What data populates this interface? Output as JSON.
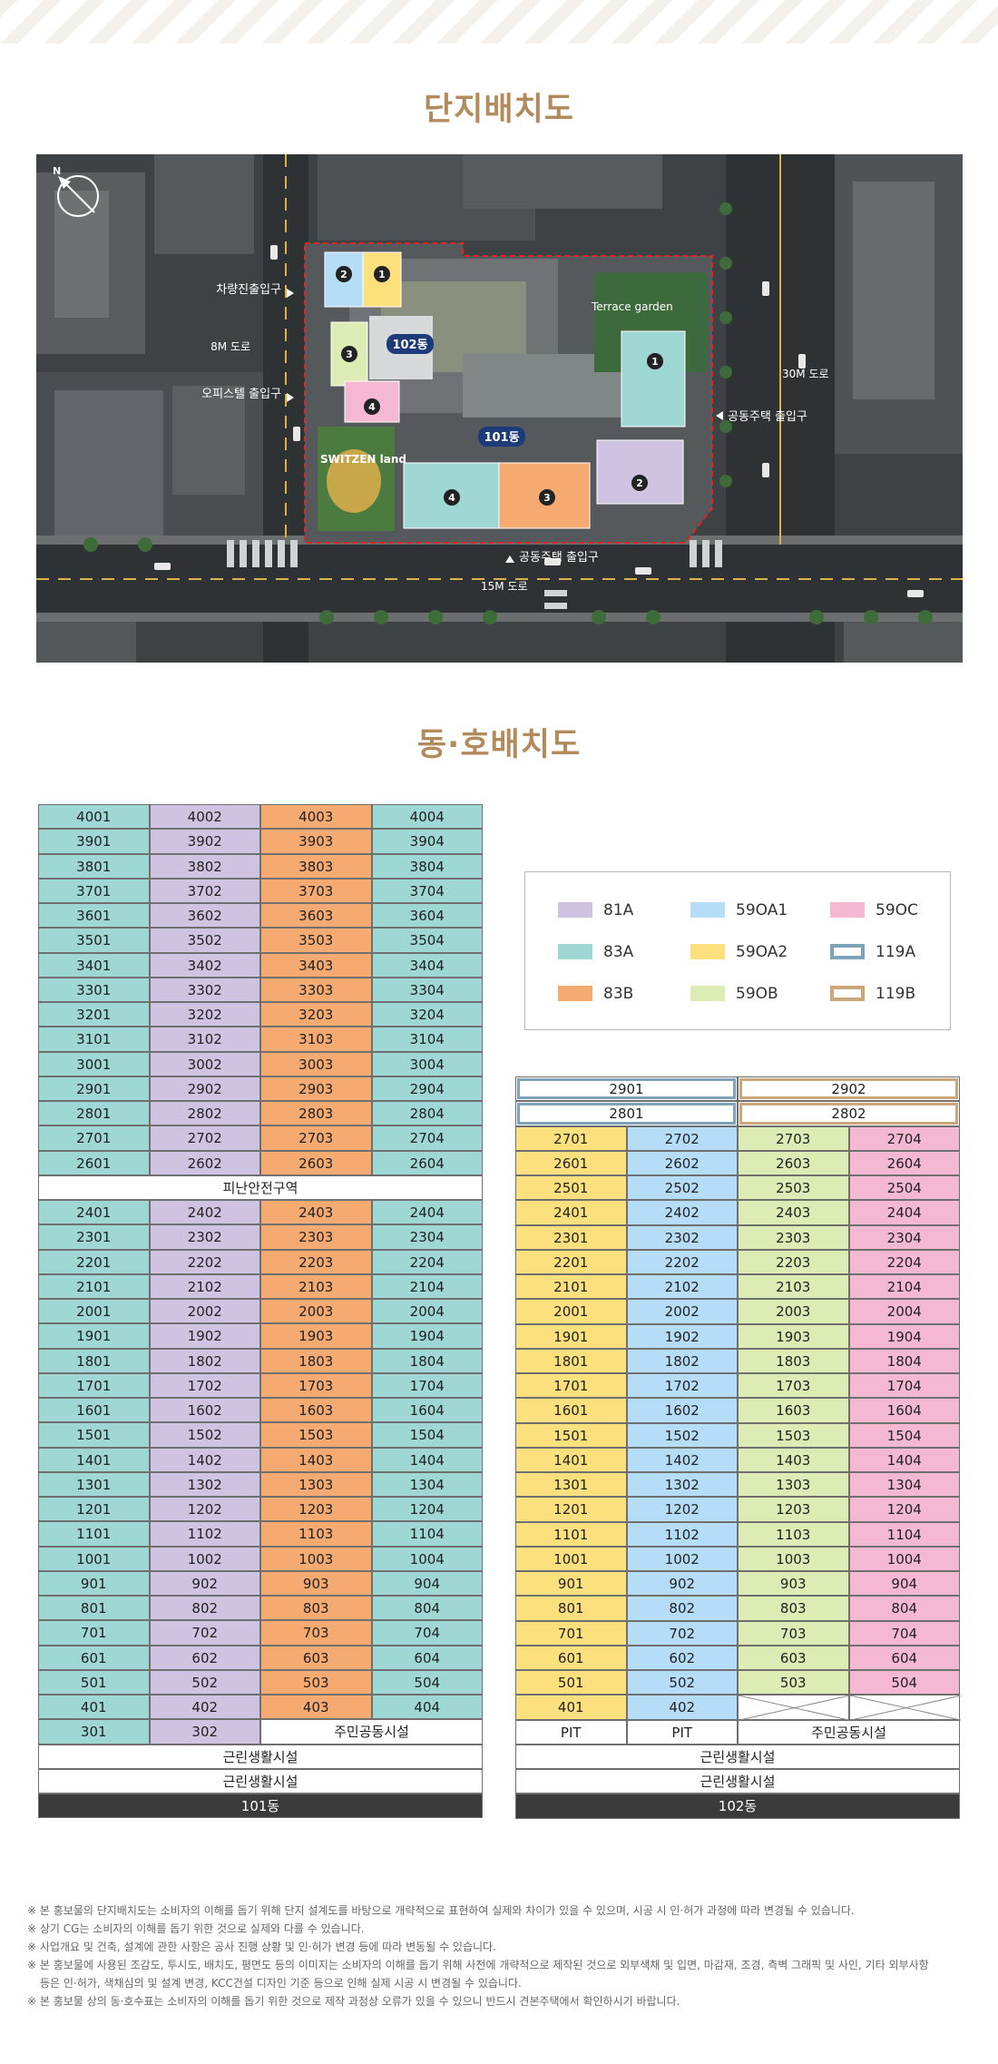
{
  "titles": {
    "site_plan": "단지배치도",
    "unit_plan": "동·호배치도"
  },
  "map_labels": {
    "road_8m": "8M 도로",
    "road_30m": "30M 도로",
    "road_15m": "15M 도로",
    "vehicle_entrance": "차량진출입구",
    "officetel_entrance": "오피스텔 출입구",
    "apartment_entrance_east": "공동주택 출입구",
    "apartment_entrance_south": "공동주택 출입구",
    "terrace_garden": "Terrace garden",
    "swizen_land": "SWITZEN land",
    "bldg_102": "102동",
    "bldg_101": "101동",
    "markers": [
      "1",
      "2",
      "3",
      "4"
    ]
  },
  "legend": [
    {
      "label": "81A",
      "color": "#cfc3e1",
      "style": "fill"
    },
    {
      "label": "59OA1",
      "color": "#b5ddf7",
      "style": "fill"
    },
    {
      "label": "59OC",
      "color": "#f5b8d3",
      "style": "fill"
    },
    {
      "label": "83A",
      "color": "#9ed7d4",
      "style": "fill"
    },
    {
      "label": "59OA2",
      "color": "#fbe07d",
      "style": "fill"
    },
    {
      "label": "119A",
      "color": "#7fa3b8",
      "style": "outline"
    },
    {
      "label": "83B",
      "color": "#f5aa72",
      "style": "fill"
    },
    {
      "label": "59OB",
      "color": "#ddebb5",
      "style": "fill"
    },
    {
      "label": "119B",
      "color": "#caa67a",
      "style": "outline"
    }
  ],
  "bldg101": {
    "upper_floors": [
      "40",
      "39",
      "38",
      "37",
      "36",
      "35",
      "34",
      "33",
      "32",
      "31",
      "30",
      "29",
      "28",
      "27",
      "26"
    ],
    "refuge_label": "피난안전구역",
    "lower_floors": [
      "24",
      "23",
      "22",
      "21",
      "20",
      "19",
      "18",
      "17",
      "16",
      "15",
      "14",
      "13",
      "12",
      "11",
      "10",
      "9",
      "8",
      "7",
      "6",
      "5",
      "4"
    ],
    "floor3_units": [
      "301",
      "302"
    ],
    "community": "주민공동시설",
    "retail_1": "근린생활시설",
    "retail_2": "근린생활시설",
    "name": "101동"
  },
  "bldg102": {
    "penthouse_29": [
      "2901",
      "2902"
    ],
    "penthouse_28": [
      "2801",
      "2802"
    ],
    "floors": [
      "27",
      "26",
      "25",
      "24",
      "23",
      "22",
      "21",
      "20",
      "19",
      "18",
      "17",
      "16",
      "15",
      "14",
      "13",
      "12",
      "11",
      "10",
      "9",
      "8",
      "7",
      "6",
      "5"
    ],
    "floor4_units": [
      "401",
      "402"
    ],
    "floor3_units": [
      "PIT",
      "PIT"
    ],
    "community": "주민공동시설",
    "retail_1": "근린생활시설",
    "retail_2": "근린생활시설",
    "name": "102동"
  },
  "notes": [
    "※ 본 홍보물의 단지배치도는 소비자의 이해를 돕기 위해 단지 설계도를 바탕으로 개략적으로 표현하여 실제와 차이가 있을 수 있으며, 시공 시 인·허가 과정에 따라 변경될 수 있습니다.",
    "※ 상기 CG는 소비자의 이해를 돕기 위한 것으로 실제와 다를 수 있습니다.",
    "※ 사업개요 및 건축, 설계에 관한 사항은 공사 진행 상황 및 인·허가 변경 등에 따라 변동될 수 있습니다.",
    "※ 본 홍보물에 사용된 조감도, 투시도, 배치도, 평면도 등의 이미지는 소비자의 이해를 돕기 위해 사전에 개략적으로 제작된 것으로 외부색채 및 입면, 마감재, 조경, 측벽 그래픽 및 사인, 기타 외부사항",
    "등은 인·허가, 색채심의 및 설계 변경, KCC건설 디자인 기준 등으로 인해 실제 시공 시 변경될 수 있습니다.",
    "※ 본 홍보물 상의 동·호수표는 소비자의 이해를 돕기 위한 것으로 제작 과정상 오류가 있을 수 있으니 반드시 견본주택에서 확인하시기 바랍니다."
  ]
}
